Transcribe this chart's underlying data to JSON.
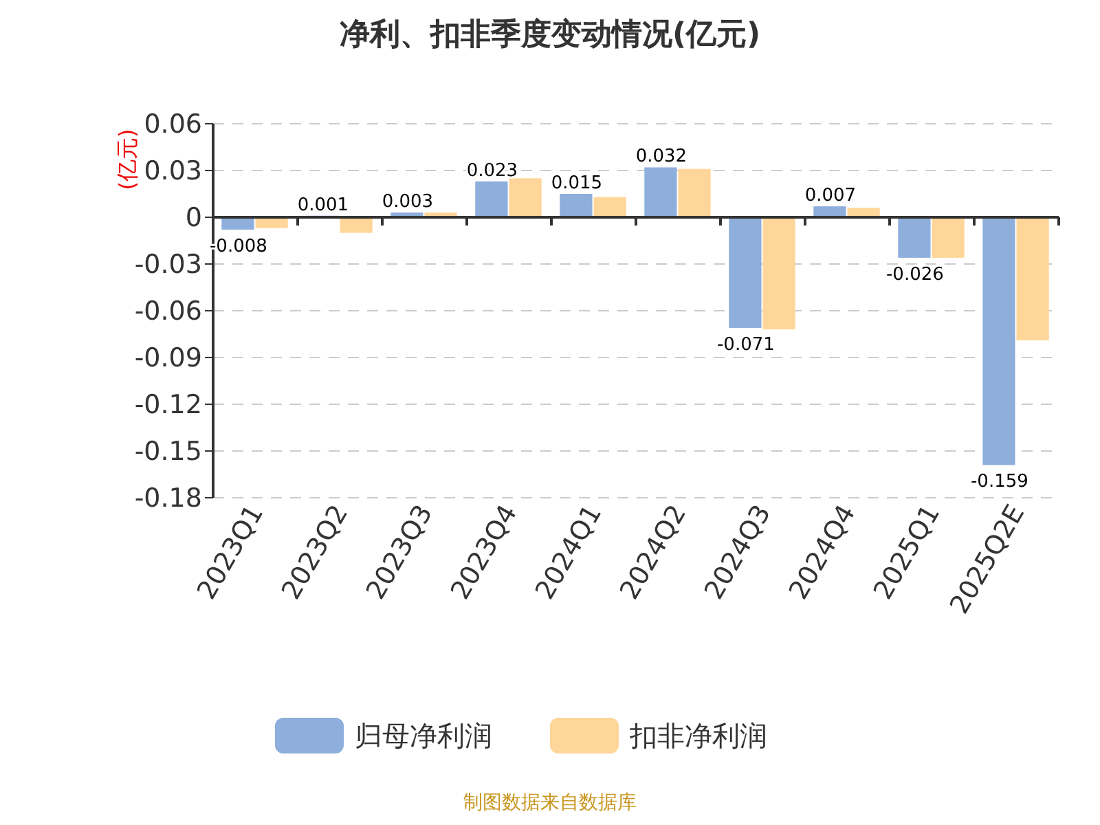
{
  "chart_data": {
    "type": "bar",
    "title": "净利、扣非季度变动情况(亿元)",
    "ylabel": "(亿元)",
    "categories": [
      "2023Q1",
      "2023Q2",
      "2023Q3",
      "2023Q4",
      "2024Q1",
      "2024Q2",
      "2024Q3",
      "2024Q4",
      "2025Q1",
      "2025Q2E"
    ],
    "series": [
      {
        "name": "归母净利润",
        "color": "#8eaedb",
        "values": [
          -0.008,
          0.001,
          0.003,
          0.023,
          0.015,
          0.032,
          -0.071,
          0.007,
          -0.026,
          -0.159
        ],
        "value_labels": [
          "-0.008",
          "0.001",
          "0.003",
          "0.023",
          "0.015",
          "0.032",
          "-0.071",
          "0.007",
          "-0.026",
          "-0.159"
        ]
      },
      {
        "name": "扣非净利润",
        "color": "#ffd699",
        "values": [
          -0.007,
          -0.01,
          0.003,
          0.025,
          0.013,
          0.031,
          -0.072,
          0.006,
          -0.026,
          -0.079
        ]
      }
    ],
    "ylim": [
      -0.18,
      0.06
    ],
    "yticks": [
      -0.18,
      -0.15,
      -0.12,
      -0.09,
      -0.06,
      -0.03,
      0,
      0.03,
      0.06
    ],
    "grid": "y",
    "legend": "bottom",
    "annotations": [
      "制图数据来自数据库"
    ]
  }
}
